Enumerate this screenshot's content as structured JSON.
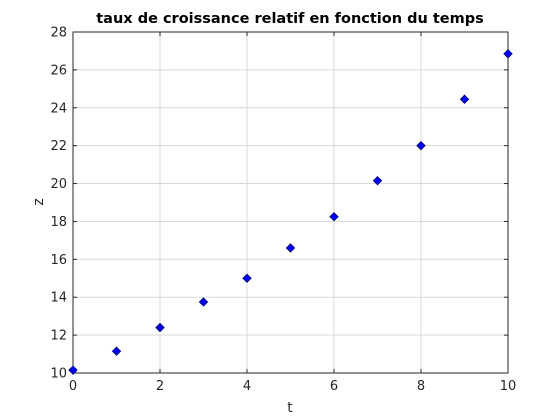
{
  "chart_data": {
    "type": "scatter",
    "title": "taux de croissance relatif en fonction du temps",
    "xlabel": "t",
    "ylabel": "z",
    "xlim": [
      0,
      10
    ],
    "ylim": [
      10,
      28
    ],
    "xticks": [
      0,
      2,
      4,
      6,
      8,
      10
    ],
    "yticks": [
      10,
      12,
      14,
      16,
      18,
      20,
      22,
      24,
      26,
      28
    ],
    "grid": true,
    "marker": "diamond",
    "marker_color": "#0000ff",
    "marker_edge_color": "#000080",
    "series": [
      {
        "x": [
          0,
          1,
          2,
          3,
          4,
          5,
          6,
          7,
          8,
          9,
          10
        ],
        "y": [
          10.15,
          11.15,
          12.4,
          13.75,
          15.0,
          16.6,
          18.25,
          20.15,
          22.0,
          24.45,
          26.85
        ]
      }
    ]
  }
}
